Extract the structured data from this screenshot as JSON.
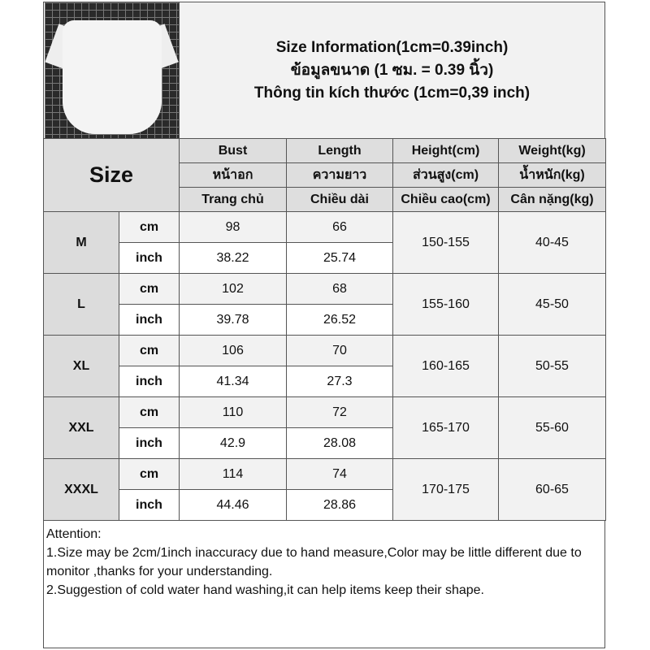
{
  "title": {
    "line1": "Size Information(1cm=0.39inch)",
    "line2": "ข้อมูลขนาด (1 ซม. = 0.39 นิ้ว)",
    "line3": "Thông tin kích thước (1cm=0,39 inch)"
  },
  "header": {
    "size_label": "Size",
    "columns": [
      {
        "en": "Bust",
        "th": "หน้าอก",
        "vi": "Trang chủ"
      },
      {
        "en": "Length",
        "th": "ความยาว",
        "vi": "Chiều dài"
      },
      {
        "en": "Height(cm)",
        "th": "ส่วนสูง(cm)",
        "vi": "Chiều cao(cm)"
      },
      {
        "en": "Weight(kg)",
        "th": "น้ำหนัก(kg)",
        "vi": "Cân nặng(kg)"
      }
    ]
  },
  "units": {
    "cm": "cm",
    "inch": "inch"
  },
  "rows": [
    {
      "size": "M",
      "bust_cm": "98",
      "length_cm": "66",
      "bust_in": "38.22",
      "length_in": "25.74",
      "height": "150-155",
      "weight": "40-45"
    },
    {
      "size": "L",
      "bust_cm": "102",
      "length_cm": "68",
      "bust_in": "39.78",
      "length_in": "26.52",
      "height": "155-160",
      "weight": "45-50"
    },
    {
      "size": "XL",
      "bust_cm": "106",
      "length_cm": "70",
      "bust_in": "41.34",
      "length_in": "27.3",
      "height": "160-165",
      "weight": "50-55"
    },
    {
      "size": "XXL",
      "bust_cm": "110",
      "length_cm": "72",
      "bust_in": "42.9",
      "length_in": "28.08",
      "height": "165-170",
      "weight": "55-60"
    },
    {
      "size": "XXXL",
      "bust_cm": "114",
      "length_cm": "74",
      "bust_in": "44.46",
      "length_in": "28.86",
      "height": "170-175",
      "weight": "60-65"
    }
  ],
  "notes": {
    "heading": "Attention:",
    "line1": "1.Size may be 2cm/1inch inaccuracy due to hand measure,Color may be little different due to monitor ,thanks for your understanding.",
    "line2": "2.Suggestion of cold water hand washing,it can help items keep their shape."
  }
}
